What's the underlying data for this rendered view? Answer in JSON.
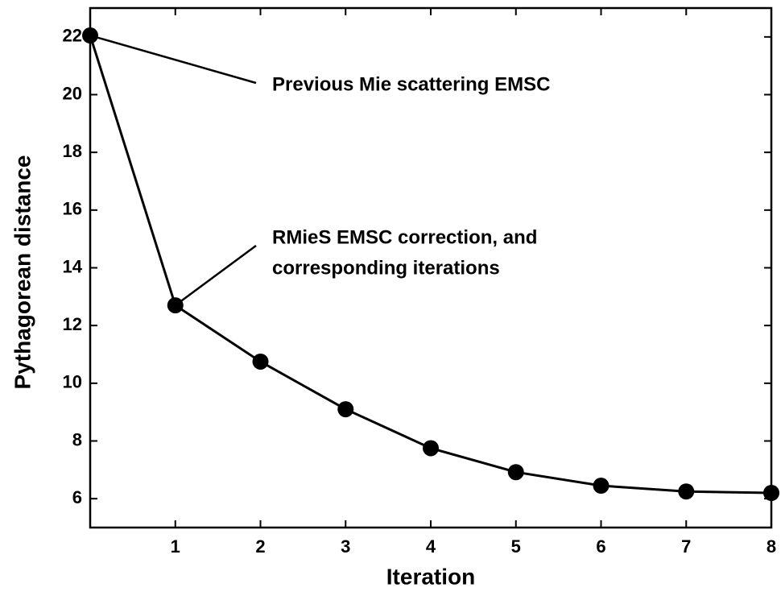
{
  "chart_data": {
    "type": "line",
    "x_label": "Iteration",
    "y_label": "Pythagorean distance",
    "x": [
      0,
      1,
      2,
      3,
      4,
      5,
      6,
      7,
      8
    ],
    "values": [
      22.05,
      12.7,
      10.75,
      9.1,
      7.75,
      6.92,
      6.45,
      6.25,
      6.2
    ],
    "color": "#000000",
    "xlim": [
      0,
      8
    ],
    "xticks": [
      1,
      2,
      3,
      4,
      5,
      6,
      7,
      8
    ],
    "ylim": [
      5,
      23
    ],
    "yticks": [
      6,
      8,
      10,
      12,
      14,
      16,
      18,
      20,
      22
    ],
    "grid": false,
    "annotations": [
      "Previous Mie scattering EMSC",
      "RMieS EMSC correction, and",
      "corresponding iterations"
    ]
  }
}
